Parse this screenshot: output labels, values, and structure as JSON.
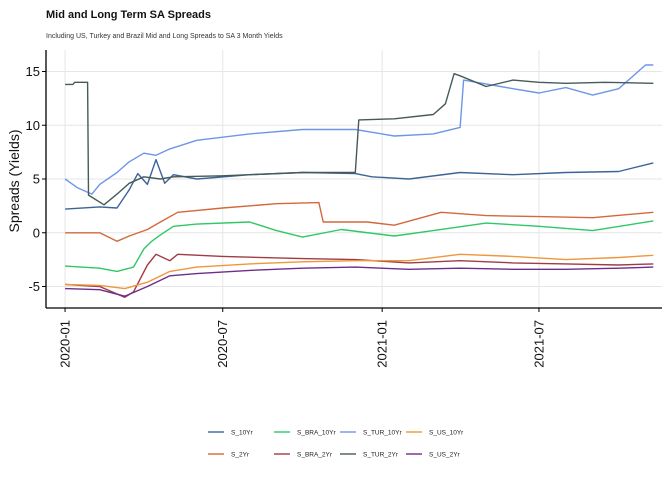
{
  "chart_data": {
    "type": "line",
    "title": "Mid and Long Term SA Spreads",
    "subtitle": "Including US, Turkey and Brazil Mid and Long Spreads to SA 3 Month Yields",
    "xlabel": "",
    "ylabel": "Spreads (Yields)",
    "ylim": [
      -7,
      17
    ],
    "xlim": [
      "2019-12-10",
      "2021-11-20"
    ],
    "yticks": [
      -5,
      0,
      5,
      10,
      15
    ],
    "xticks": [
      "2020-01",
      "2020-07",
      "2021-01",
      "2021-07"
    ],
    "grid": true,
    "legend_position": "bottom",
    "series": [
      {
        "name": "S_10Yr",
        "color": "#3c6496",
        "points": [
          [
            "2020-01-01",
            2.2
          ],
          [
            "2020-02-10",
            2.4
          ],
          [
            "2020-03-01",
            2.3
          ],
          [
            "2020-03-15",
            4.0
          ],
          [
            "2020-03-25",
            5.5
          ],
          [
            "2020-04-05",
            4.5
          ],
          [
            "2020-04-15",
            6.8
          ],
          [
            "2020-04-25",
            4.6
          ],
          [
            "2020-05-05",
            5.4
          ],
          [
            "2020-06-01",
            5.0
          ],
          [
            "2020-08-01",
            5.4
          ],
          [
            "2020-10-01",
            5.6
          ],
          [
            "2020-12-01",
            5.5
          ],
          [
            "2020-12-20",
            5.2
          ],
          [
            "2021-02-01",
            5.0
          ],
          [
            "2021-04-01",
            5.6
          ],
          [
            "2021-06-01",
            5.4
          ],
          [
            "2021-08-01",
            5.6
          ],
          [
            "2021-10-01",
            5.7
          ],
          [
            "2021-11-10",
            6.5
          ]
        ]
      },
      {
        "name": "S_2Yr",
        "color": "#d2693c",
        "points": [
          [
            "2020-01-01",
            0.0
          ],
          [
            "2020-02-10",
            0.0
          ],
          [
            "2020-03-01",
            -0.8
          ],
          [
            "2020-03-15",
            -0.3
          ],
          [
            "2020-04-05",
            0.3
          ],
          [
            "2020-04-20",
            1.0
          ],
          [
            "2020-05-10",
            1.9
          ],
          [
            "2020-07-01",
            2.3
          ],
          [
            "2020-09-01",
            2.7
          ],
          [
            "2020-10-20",
            2.8
          ],
          [
            "2020-10-25",
            1.0
          ],
          [
            "2020-12-15",
            1.0
          ],
          [
            "2021-01-15",
            0.7
          ],
          [
            "2021-03-10",
            1.9
          ],
          [
            "2021-05-01",
            1.6
          ],
          [
            "2021-07-01",
            1.5
          ],
          [
            "2021-09-01",
            1.4
          ],
          [
            "2021-11-10",
            1.9
          ]
        ]
      },
      {
        "name": "S_BRA_10Yr",
        "color": "#2ec864",
        "points": [
          [
            "2020-01-01",
            -3.1
          ],
          [
            "2020-02-10",
            -3.3
          ],
          [
            "2020-03-01",
            -3.6
          ],
          [
            "2020-03-20",
            -3.2
          ],
          [
            "2020-04-01",
            -1.5
          ],
          [
            "2020-04-10",
            -0.8
          ],
          [
            "2020-04-20",
            -0.2
          ],
          [
            "2020-05-05",
            0.6
          ],
          [
            "2020-06-01",
            0.8
          ],
          [
            "2020-08-01",
            1.0
          ],
          [
            "2020-09-01",
            0.2
          ],
          [
            "2020-10-01",
            -0.4
          ],
          [
            "2020-11-15",
            0.3
          ],
          [
            "2021-01-15",
            -0.3
          ],
          [
            "2021-03-01",
            0.2
          ],
          [
            "2021-05-01",
            0.9
          ],
          [
            "2021-07-01",
            0.6
          ],
          [
            "2021-09-01",
            0.2
          ],
          [
            "2021-11-10",
            1.1
          ]
        ]
      },
      {
        "name": "S_BRA_2Yr",
        "color": "#a03c46",
        "points": [
          [
            "2020-01-01",
            -4.8
          ],
          [
            "2020-02-10",
            -5.0
          ],
          [
            "2020-03-10",
            -6.0
          ],
          [
            "2020-03-20",
            -5.5
          ],
          [
            "2020-04-05",
            -3.0
          ],
          [
            "2020-04-15",
            -2.0
          ],
          [
            "2020-05-01",
            -2.6
          ],
          [
            "2020-05-10",
            -2.0
          ],
          [
            "2020-07-01",
            -2.2
          ],
          [
            "2020-10-01",
            -2.4
          ],
          [
            "2020-12-01",
            -2.5
          ],
          [
            "2021-02-01",
            -2.8
          ],
          [
            "2021-04-01",
            -2.6
          ],
          [
            "2021-06-01",
            -2.8
          ],
          [
            "2021-08-01",
            -2.9
          ],
          [
            "2021-10-01",
            -3.0
          ],
          [
            "2021-11-10",
            -2.9
          ]
        ]
      },
      {
        "name": "S_TUR_10Yr",
        "color": "#6e96e6",
        "points": [
          [
            "2020-01-01",
            5.0
          ],
          [
            "2020-01-15",
            4.2
          ],
          [
            "2020-02-01",
            3.6
          ],
          [
            "2020-02-10",
            4.5
          ],
          [
            "2020-03-01",
            5.6
          ],
          [
            "2020-03-15",
            6.6
          ],
          [
            "2020-04-01",
            7.4
          ],
          [
            "2020-04-15",
            7.2
          ],
          [
            "2020-05-01",
            7.8
          ],
          [
            "2020-06-01",
            8.6
          ],
          [
            "2020-08-01",
            9.2
          ],
          [
            "2020-10-01",
            9.6
          ],
          [
            "2020-12-01",
            9.6
          ],
          [
            "2021-01-15",
            9.0
          ],
          [
            "2021-03-01",
            9.2
          ],
          [
            "2021-04-01",
            9.8
          ],
          [
            "2021-04-05",
            14.2
          ],
          [
            "2021-06-01",
            13.4
          ],
          [
            "2021-07-01",
            13.0
          ],
          [
            "2021-08-01",
            13.5
          ],
          [
            "2021-09-01",
            12.8
          ],
          [
            "2021-10-01",
            13.4
          ],
          [
            "2021-10-15",
            14.4
          ],
          [
            "2021-11-01",
            15.6
          ],
          [
            "2021-11-10",
            15.6
          ]
        ]
      },
      {
        "name": "S_TUR_2Yr",
        "color": "#465a5a",
        "points": [
          [
            "2020-01-01",
            13.8
          ],
          [
            "2020-01-10",
            13.8
          ],
          [
            "2020-01-12",
            14.0
          ],
          [
            "2020-01-27",
            14.0
          ],
          [
            "2020-01-28",
            3.5
          ],
          [
            "2020-02-15",
            2.6
          ],
          [
            "2020-03-01",
            3.6
          ],
          [
            "2020-03-15",
            4.6
          ],
          [
            "2020-04-01",
            5.2
          ],
          [
            "2020-04-20",
            5.0
          ],
          [
            "2020-05-05",
            5.2
          ],
          [
            "2020-07-01",
            5.3
          ],
          [
            "2020-10-01",
            5.6
          ],
          [
            "2020-12-01",
            5.6
          ],
          [
            "2020-12-05",
            10.5
          ],
          [
            "2021-01-15",
            10.6
          ],
          [
            "2021-03-01",
            11.0
          ],
          [
            "2021-03-15",
            12.0
          ],
          [
            "2021-03-25",
            14.8
          ],
          [
            "2021-04-01",
            14.6
          ],
          [
            "2021-05-01",
            13.6
          ],
          [
            "2021-06-01",
            14.2
          ],
          [
            "2021-07-01",
            14.0
          ],
          [
            "2021-08-01",
            13.9
          ],
          [
            "2021-09-15",
            14.0
          ],
          [
            "2021-11-10",
            13.9
          ]
        ]
      },
      {
        "name": "S_US_10Yr",
        "color": "#f0963c",
        "points": [
          [
            "2020-01-01",
            -4.8
          ],
          [
            "2020-02-10",
            -4.9
          ],
          [
            "2020-03-10",
            -5.2
          ],
          [
            "2020-04-05",
            -4.6
          ],
          [
            "2020-05-01",
            -3.6
          ],
          [
            "2020-06-01",
            -3.2
          ],
          [
            "2020-08-01",
            -2.9
          ],
          [
            "2020-10-01",
            -2.7
          ],
          [
            "2020-12-01",
            -2.6
          ],
          [
            "2021-02-01",
            -2.6
          ],
          [
            "2021-04-01",
            -2.0
          ],
          [
            "2021-06-01",
            -2.2
          ],
          [
            "2021-08-01",
            -2.5
          ],
          [
            "2021-10-01",
            -2.3
          ],
          [
            "2021-11-10",
            -2.1
          ]
        ]
      },
      {
        "name": "S_US_2Yr",
        "color": "#6e2d8c",
        "points": [
          [
            "2020-01-01",
            -5.2
          ],
          [
            "2020-02-10",
            -5.3
          ],
          [
            "2020-03-10",
            -5.9
          ],
          [
            "2020-04-05",
            -5.0
          ],
          [
            "2020-05-01",
            -4.0
          ],
          [
            "2020-06-01",
            -3.8
          ],
          [
            "2020-08-01",
            -3.5
          ],
          [
            "2020-10-01",
            -3.3
          ],
          [
            "2020-12-01",
            -3.2
          ],
          [
            "2021-02-01",
            -3.4
          ],
          [
            "2021-04-01",
            -3.3
          ],
          [
            "2021-06-01",
            -3.4
          ],
          [
            "2021-08-01",
            -3.4
          ],
          [
            "2021-10-01",
            -3.3
          ],
          [
            "2021-11-10",
            -3.2
          ]
        ]
      }
    ]
  }
}
